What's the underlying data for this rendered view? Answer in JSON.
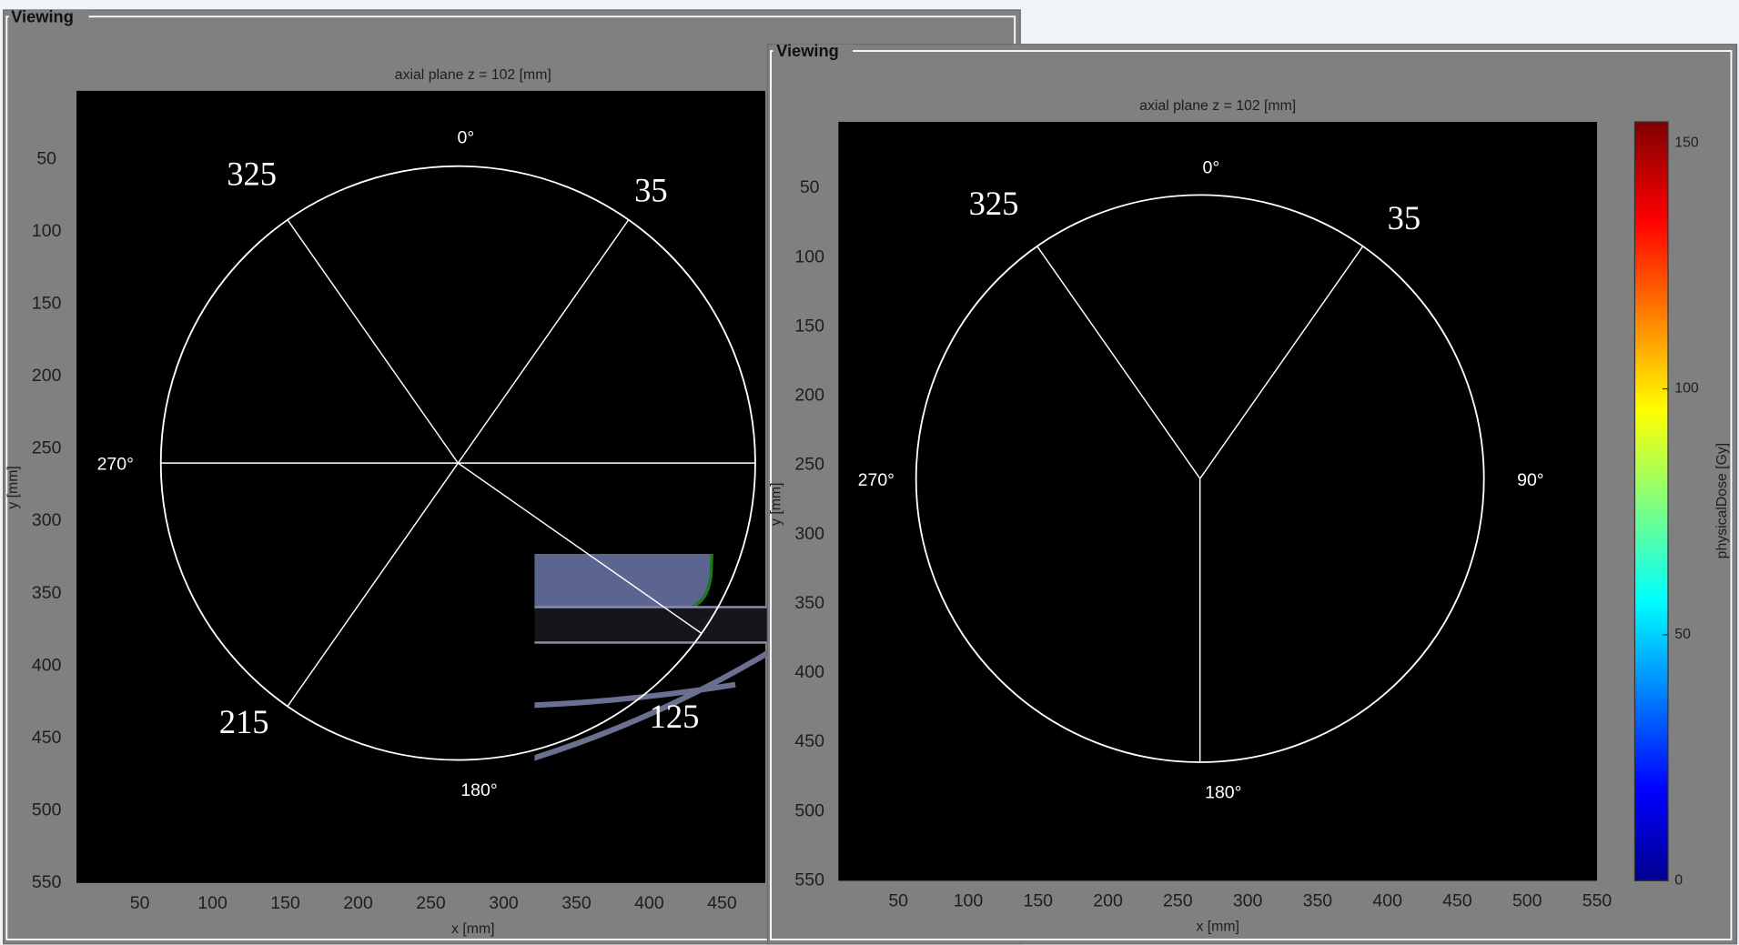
{
  "panels": [
    {
      "title": "Viewing",
      "plot": {
        "title": "axial plane z = 102 [mm]",
        "xlabel": "x [mm]",
        "ylabel": "y [mm]",
        "xticks": [
          50,
          100,
          150,
          200,
          250,
          300,
          350,
          400,
          450
        ],
        "yticks": [
          50,
          100,
          150,
          200,
          250,
          300,
          350,
          400,
          450,
          500,
          550
        ],
        "angle_labels": [
          "0°",
          "270°",
          "180°"
        ],
        "beams": [
          325,
          35,
          215,
          125
        ]
      }
    },
    {
      "title": "Viewing",
      "plot": {
        "title": "axial plane z = 102 [mm]",
        "xlabel": "x [mm]",
        "ylabel": "y [mm]",
        "xticks": [
          50,
          100,
          150,
          200,
          250,
          300,
          350,
          400,
          450,
          500,
          550
        ],
        "yticks": [
          50,
          100,
          150,
          200,
          250,
          300,
          350,
          400,
          450,
          500,
          550
        ],
        "angle_labels": [
          "0°",
          "270°",
          "90°",
          "180°"
        ],
        "beams": [
          325,
          35
        ],
        "colorbar": {
          "label": "physicalDose [Gy]",
          "ticks": [
            0,
            50,
            100,
            150
          ]
        }
      }
    }
  ]
}
